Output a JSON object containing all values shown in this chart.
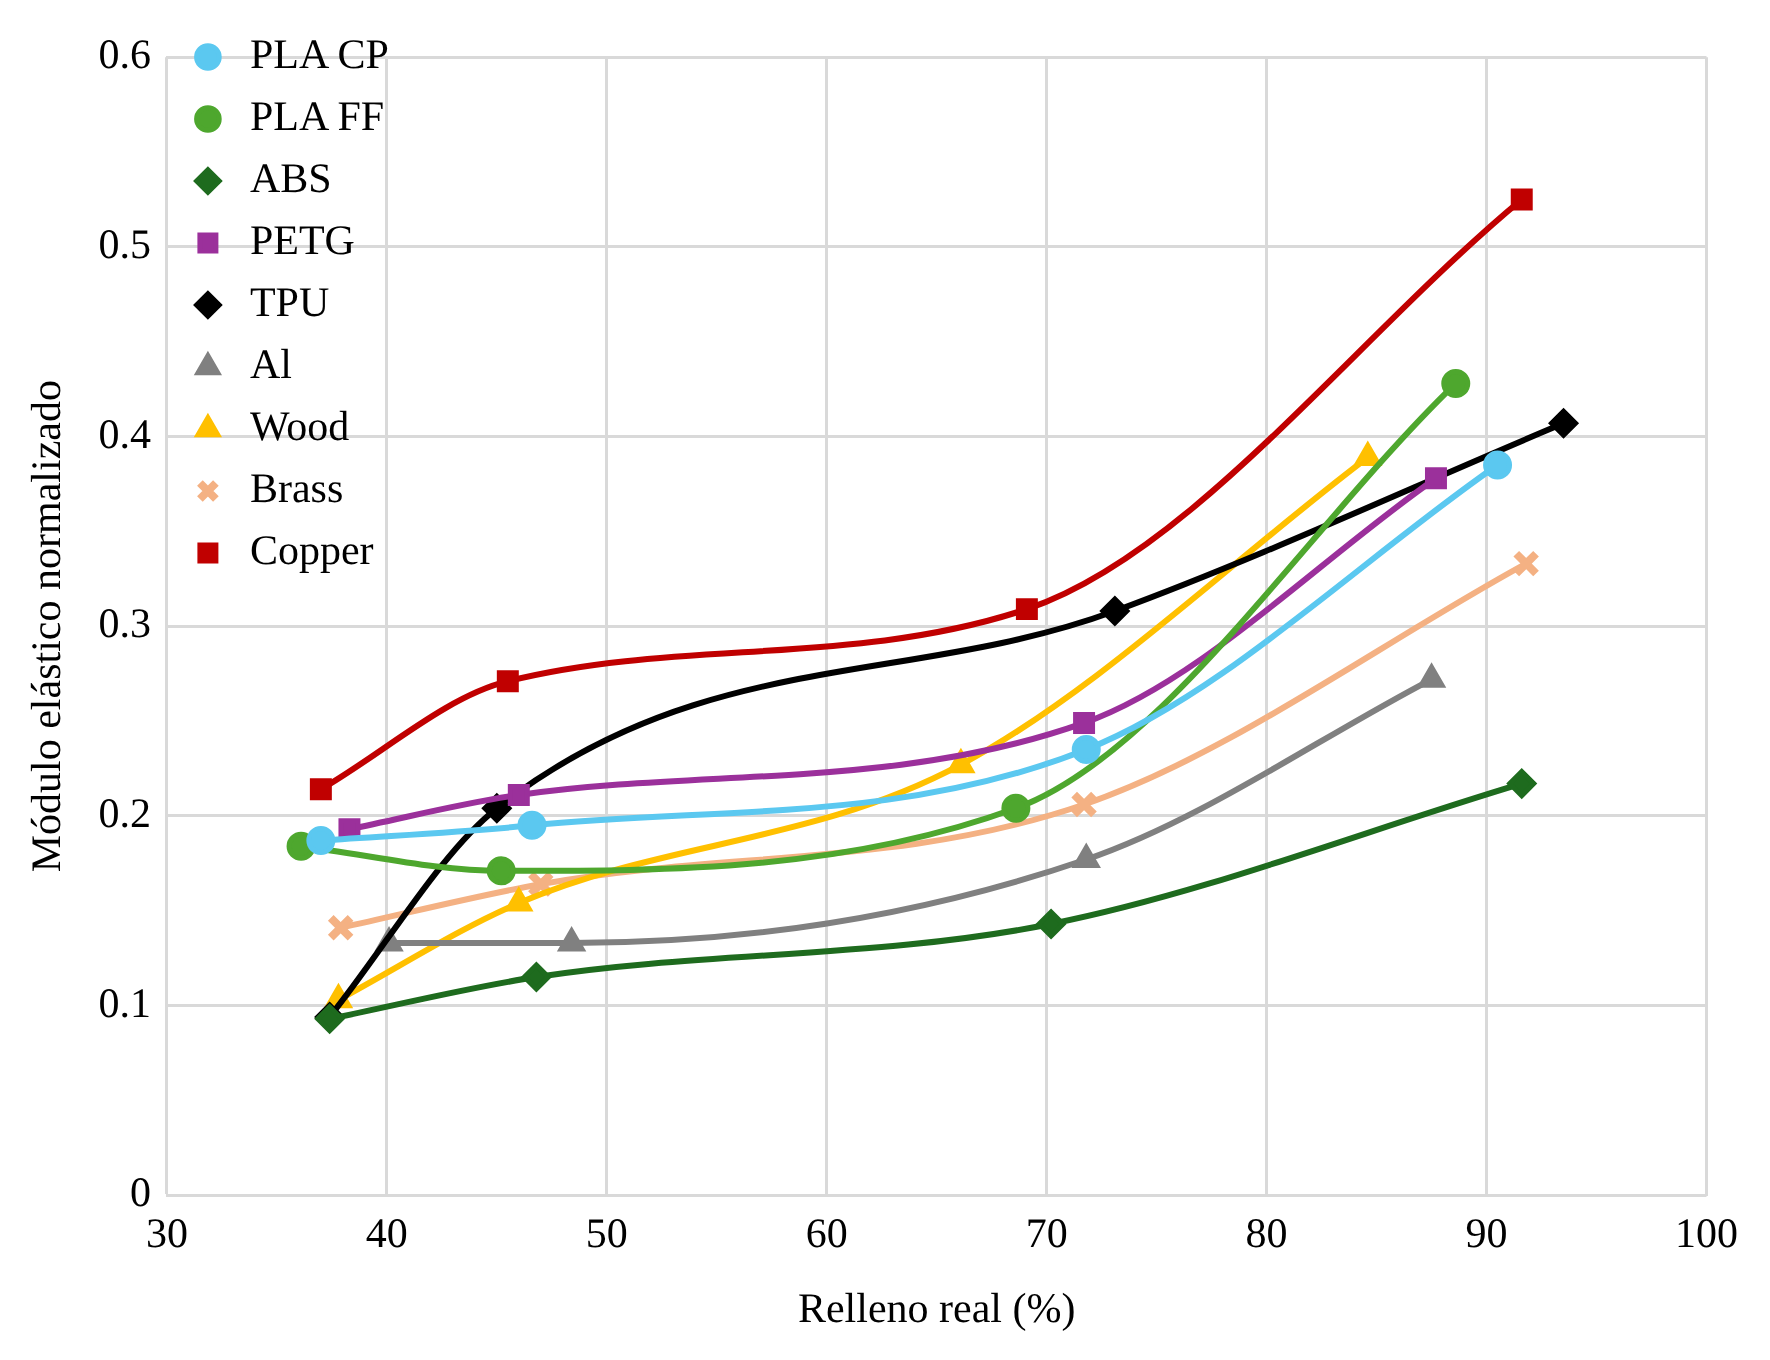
{
  "chart_data": {
    "type": "line",
    "xlabel": "Relleno real (%)",
    "ylabel": "Módulo elástico normalizado",
    "xlim": [
      30,
      100
    ],
    "xticks": [
      30,
      40,
      50,
      60,
      70,
      80,
      90,
      100
    ],
    "ylim": [
      0,
      0.6
    ],
    "yticks": [
      0,
      0.1,
      0.2,
      0.3,
      0.4,
      0.5,
      0.6
    ],
    "grid": true,
    "legend": "top left",
    "series": [
      {
        "name": "PLA CP",
        "color": "#5bc8f0",
        "marker": "circle",
        "x": [
          37.0,
          46.6,
          71.8,
          90.5
        ],
        "values": [
          0.187,
          0.195,
          0.235,
          0.385
        ]
      },
      {
        "name": "PLA FF",
        "color": "#4ea72e",
        "marker": "circle",
        "x": [
          36.1,
          45.2,
          68.6,
          88.6
        ],
        "values": [
          0.184,
          0.171,
          0.204,
          0.428
        ]
      },
      {
        "name": "ABS",
        "color": "#1e6b1e",
        "marker": "diamond",
        "x": [
          37.4,
          46.8,
          70.2,
          91.6
        ],
        "values": [
          0.093,
          0.115,
          0.143,
          0.217
        ]
      },
      {
        "name": "PETG",
        "color": "#9b309b",
        "marker": "square",
        "x": [
          38.3,
          46.0,
          71.7,
          87.7
        ],
        "values": [
          0.193,
          0.211,
          0.249,
          0.378
        ]
      },
      {
        "name": "TPU",
        "color": "#000000",
        "marker": "diamond",
        "x": [
          37.4,
          45.0,
          73.1,
          93.5
        ],
        "values": [
          0.094,
          0.204,
          0.308,
          0.407
        ]
      },
      {
        "name": "Al",
        "color": "#808080",
        "marker": "triangle",
        "x": [
          40.1,
          48.4,
          71.8,
          87.5
        ],
        "values": [
          0.133,
          0.133,
          0.177,
          0.272
        ]
      },
      {
        "name": "Wood",
        "color": "#ffc000",
        "marker": "triangle",
        "x": [
          37.8,
          46.0,
          66.1,
          84.6
        ],
        "values": [
          0.103,
          0.154,
          0.227,
          0.389
        ]
      },
      {
        "name": "Brass",
        "color": "#f4b183",
        "marker": "cross",
        "x": [
          37.9,
          47.0,
          71.7,
          91.8
        ],
        "values": [
          0.141,
          0.164,
          0.206,
          0.333
        ]
      },
      {
        "name": "Copper",
        "color": "#c00000",
        "marker": "square",
        "x": [
          37.0,
          45.5,
          69.1,
          91.6
        ],
        "values": [
          0.214,
          0.271,
          0.309,
          0.525
        ]
      }
    ]
  }
}
